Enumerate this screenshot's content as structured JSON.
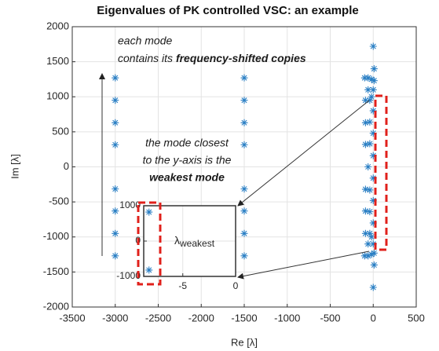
{
  "chart_data": [
    {
      "type": "scatter",
      "title": "Eigenvalues of PK controlled VSC: an example",
      "xlabel": "Re [λ]",
      "ylabel": "Im [λ]",
      "xlim": [
        -3500,
        500
      ],
      "ylim": [
        -2000,
        2000
      ],
      "xticks": [
        -3500,
        -3000,
        -2500,
        -2000,
        -1500,
        -1000,
        -500,
        0,
        500
      ],
      "yticks": [
        -2000,
        -1500,
        -1000,
        -500,
        0,
        500,
        1000,
        1500,
        2000
      ],
      "grid": true,
      "color": "#2a7fc4",
      "x": [
        -3000,
        -3000,
        -3000,
        -3000,
        -3000,
        -3000,
        -3000,
        -3000,
        -1500,
        -1500,
        -1500,
        -1500,
        -1500,
        -1500,
        -1500,
        -1500,
        -100,
        -60,
        -20,
        10,
        -100,
        -60,
        -20,
        10,
        0,
        0,
        10,
        10,
        -90,
        -40,
        0,
        -90,
        -40,
        0,
        -90,
        -40,
        0,
        -90,
        -40,
        0,
        -90,
        -40,
        0,
        -90,
        -40,
        0,
        -60,
        0,
        0,
        -20,
        -20,
        -60,
        -60
      ],
      "y": [
        1270,
        950,
        630,
        315,
        -315,
        -630,
        -950,
        -1270,
        1270,
        950,
        630,
        315,
        -315,
        -630,
        -950,
        -1270,
        1270,
        1270,
        1250,
        1230,
        -1270,
        -1270,
        -1250,
        -1230,
        1720,
        -1720,
        1400,
        -1400,
        950,
        950,
        1100,
        -950,
        -950,
        -1100,
        630,
        640,
        800,
        -630,
        -640,
        -800,
        320,
        330,
        480,
        -320,
        -330,
        -480,
        0,
        160,
        -160,
        1000,
        -1000,
        1100,
        -1100
      ],
      "annotations": [
        "each mode",
        "contains its ",
        "frequency-shifted copies",
        "the mode closest",
        "to the y-axis is the",
        "weakest mode"
      ]
    },
    {
      "type": "scatter",
      "xlim": [
        -8.7,
        0
      ],
      "ylim": [
        -1000,
        1000
      ],
      "xticks": [
        -5,
        0
      ],
      "yticks": [
        -1000,
        0,
        1000
      ],
      "grid": true,
      "color": "#2a7fc4",
      "x": [
        -8.2,
        -8.2
      ],
      "y": [
        820,
        -820
      ],
      "annotations": [
        "λ",
        "weakest"
      ]
    }
  ]
}
